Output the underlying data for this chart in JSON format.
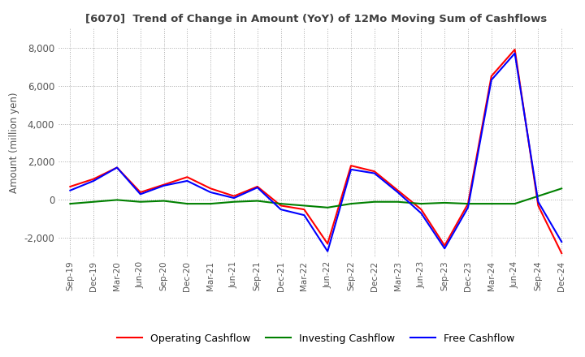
{
  "title": "[6070]  Trend of Change in Amount (YoY) of 12Mo Moving Sum of Cashflows",
  "ylabel": "Amount (million yen)",
  "ylim": [
    -3000,
    9000
  ],
  "yticks": [
    -2000,
    0,
    2000,
    4000,
    6000,
    8000
  ],
  "x_labels": [
    "Sep-19",
    "Dec-19",
    "Mar-20",
    "Jun-20",
    "Sep-20",
    "Dec-20",
    "Mar-21",
    "Jun-21",
    "Sep-21",
    "Dec-21",
    "Mar-22",
    "Jun-22",
    "Sep-22",
    "Dec-22",
    "Mar-23",
    "Jun-23",
    "Sep-23",
    "Dec-23",
    "Mar-24",
    "Jun-24",
    "Sep-24",
    "Dec-24"
  ],
  "operating": [
    700,
    1100,
    1700,
    400,
    800,
    1200,
    600,
    200,
    700,
    -300,
    -500,
    -2300,
    1800,
    1500,
    500,
    -500,
    -2400,
    -200,
    6500,
    7900,
    -300,
    -2800
  ],
  "investing": [
    -200,
    -100,
    0,
    -100,
    -50,
    -200,
    -200,
    -100,
    -50,
    -200,
    -300,
    -400,
    -200,
    -100,
    -100,
    -200,
    -150,
    -200,
    -200,
    -200,
    200,
    600
  ],
  "free": [
    500,
    1000,
    1700,
    300,
    750,
    1000,
    400,
    100,
    650,
    -500,
    -800,
    -2700,
    1600,
    1400,
    400,
    -700,
    -2550,
    -400,
    6300,
    7700,
    -100,
    -2200
  ],
  "operating_color": "#FF0000",
  "investing_color": "#008000",
  "free_color": "#0000FF",
  "background_color": "#FFFFFF",
  "grid_color": "#AAAAAA",
  "title_color": "#404040",
  "legend_labels": [
    "Operating Cashflow",
    "Investing Cashflow",
    "Free Cashflow"
  ]
}
